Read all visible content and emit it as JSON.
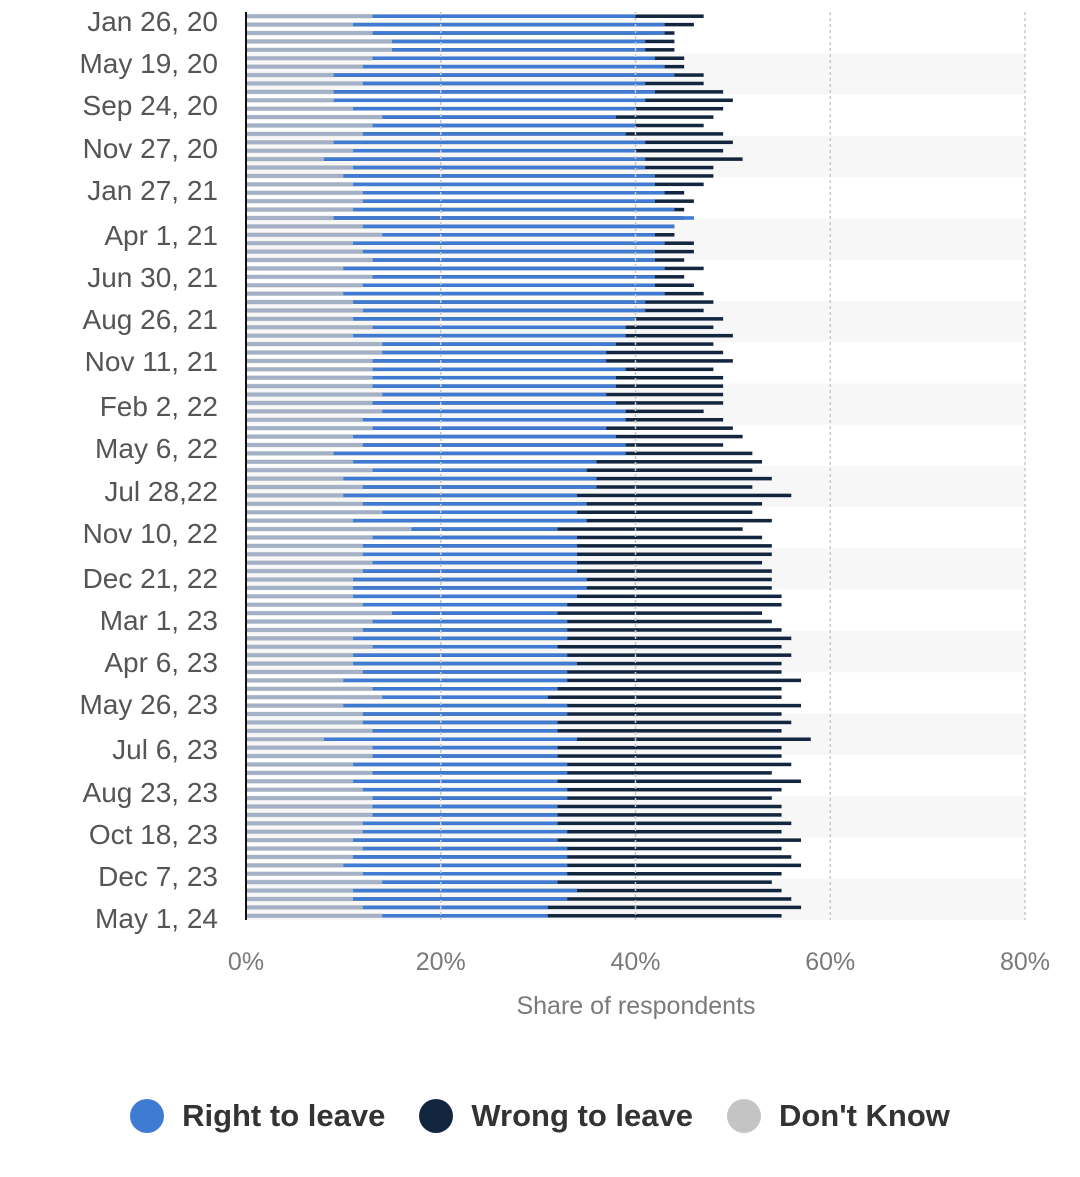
{
  "chart_data": {
    "type": "bar",
    "orientation": "horizontal",
    "title": "",
    "xlabel": "Share of respondents",
    "ylabel": "",
    "xlim": [
      0,
      80
    ],
    "xticks": [
      "0%",
      "20%",
      "40%",
      "60%",
      "80%"
    ],
    "tick_values": [
      0,
      20,
      40,
      60,
      80
    ],
    "grid": true,
    "legend_position": "bottom",
    "category_labels": [
      "Jan 26, 20",
      "May 19, 20",
      "Sep 24, 20",
      "Nov 27, 20",
      "Jan 27, 21",
      "Apr 1, 21",
      "Jun 30, 21",
      "Aug 26, 21",
      "Nov 11, 21",
      "Feb 2, 22",
      "May 6, 22",
      "Jul 28,22",
      "Nov 10, 22",
      "Dec 21, 22",
      "Mar 1, 23",
      "Apr 6, 23",
      "May 26, 23",
      "Jul 6, 23",
      "Aug 23, 23",
      "Oct 18, 23",
      "Dec 7, 23",
      "May 1, 24"
    ],
    "series": [
      {
        "name": "Right to leave",
        "color": "#3f7ad3",
        "values": [
          40,
          43,
          43,
          41,
          41,
          42,
          43,
          44,
          41,
          42,
          41,
          40,
          38,
          40,
          39,
          41,
          40,
          41,
          41,
          42,
          42,
          43,
          42,
          44,
          46,
          44,
          42,
          43,
          42,
          42,
          43,
          42,
          42,
          43,
          41,
          41,
          40,
          39,
          39,
          38,
          37,
          37,
          39,
          38,
          38,
          37,
          38,
          39,
          39,
          37,
          38,
          39,
          39,
          36,
          35,
          36,
          36,
          34,
          35,
          34,
          35,
          32,
          34,
          34,
          34,
          34,
          34,
          35,
          35,
          34,
          33,
          32,
          33,
          33,
          33,
          32,
          33,
          34,
          33,
          33,
          32,
          31,
          33,
          33,
          32,
          32,
          34,
          32,
          32,
          33,
          33,
          32,
          33,
          33,
          32,
          32,
          32,
          33,
          32,
          33,
          33,
          33,
          33,
          32,
          34,
          33,
          31,
          31
        ]
      },
      {
        "name": "Wrong to leave",
        "color": "#13263f",
        "values": [
          47,
          46,
          44,
          44,
          44,
          45,
          45,
          47,
          47,
          49,
          50,
          49,
          48,
          47,
          49,
          50,
          49,
          51,
          48,
          48,
          47,
          45,
          46,
          45,
          45,
          44,
          44,
          46,
          46,
          45,
          47,
          45,
          46,
          47,
          48,
          47,
          49,
          48,
          50,
          48,
          49,
          50,
          48,
          49,
          49,
          49,
          49,
          47,
          49,
          50,
          51,
          49,
          52,
          53,
          52,
          54,
          52,
          56,
          53,
          52,
          54,
          51,
          53,
          54,
          54,
          53,
          54,
          54,
          54,
          55,
          55,
          53,
          54,
          55,
          56,
          55,
          56,
          55,
          55,
          57,
          55,
          55,
          57,
          55,
          56,
          55,
          58,
          55,
          55,
          56,
          54,
          57,
          55,
          54,
          55,
          55,
          56,
          55,
          57,
          55,
          56,
          57,
          55,
          54,
          55,
          56,
          57,
          55
        ]
      },
      {
        "name": "Don't Know",
        "color": "#c4c4c4",
        "values": [
          13,
          11,
          13,
          15,
          15,
          13,
          12,
          9,
          12,
          9,
          9,
          11,
          14,
          13,
          12,
          9,
          11,
          8,
          11,
          10,
          11,
          12,
          12,
          11,
          9,
          12,
          14,
          11,
          12,
          13,
          10,
          13,
          12,
          10,
          11,
          12,
          11,
          13,
          11,
          14,
          14,
          13,
          13,
          13,
          13,
          14,
          13,
          14,
          12,
          13,
          11,
          12,
          9,
          11,
          13,
          10,
          12,
          10,
          12,
          14,
          11,
          17,
          13,
          12,
          12,
          13,
          12,
          11,
          11,
          11,
          12,
          15,
          13,
          12,
          11,
          13,
          11,
          11,
          12,
          10,
          13,
          14,
          10,
          12,
          12,
          13,
          8,
          13,
          13,
          11,
          13,
          11,
          12,
          13,
          13,
          13,
          12,
          12,
          11,
          12,
          11,
          10,
          12,
          14,
          11,
          11,
          12,
          14
        ]
      }
    ]
  },
  "legend": {
    "right": {
      "label": "Right to leave",
      "color": "#3f7ad3"
    },
    "wrong": {
      "label": "Wrong to leave",
      "color": "#13263f"
    },
    "dont_know": {
      "label": "Don't Know",
      "color": "#c4c4c4"
    }
  }
}
